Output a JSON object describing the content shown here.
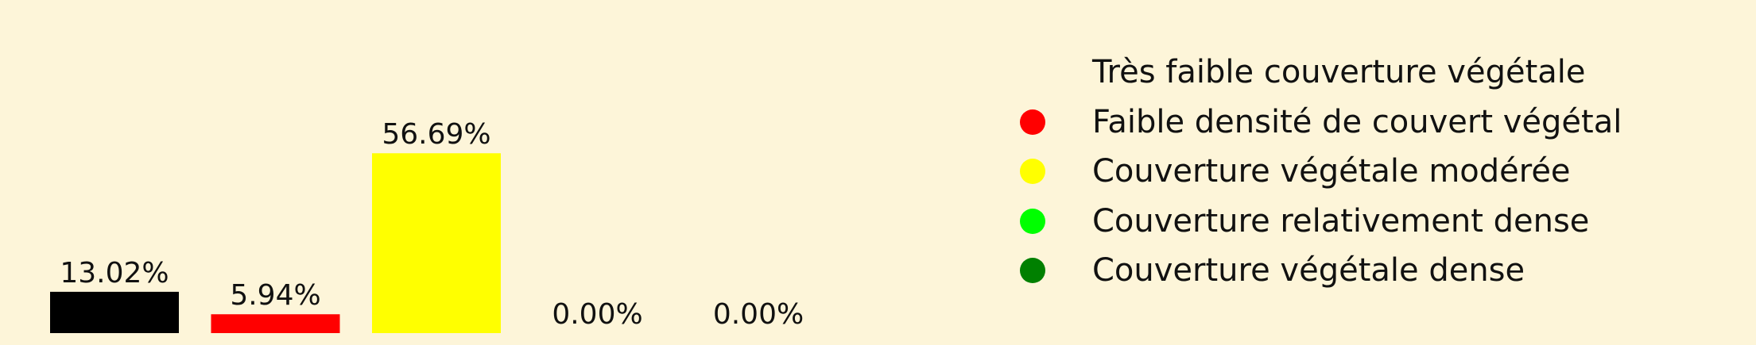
{
  "chart_data": {
    "type": "bar",
    "categories": [
      "Très faible couverture végétale",
      "Faible densité de couvert végétal",
      "Couverture végétale modérée",
      "Couverture relativement dense",
      "Couverture végétale dense"
    ],
    "values": [
      13.02,
      5.94,
      56.69,
      0.0,
      0.0
    ],
    "value_labels": [
      "13.02%",
      "5.94%",
      "56.69%",
      "0.00%",
      "0.00%"
    ],
    "colors": [
      "#000000",
      "#ff0000",
      "#ffff00",
      "#00ff00",
      "#008000"
    ],
    "ylim": [
      0,
      60
    ],
    "legend_position": "right",
    "grid": false,
    "axes_visible": false,
    "background": "#fdf5d9"
  }
}
